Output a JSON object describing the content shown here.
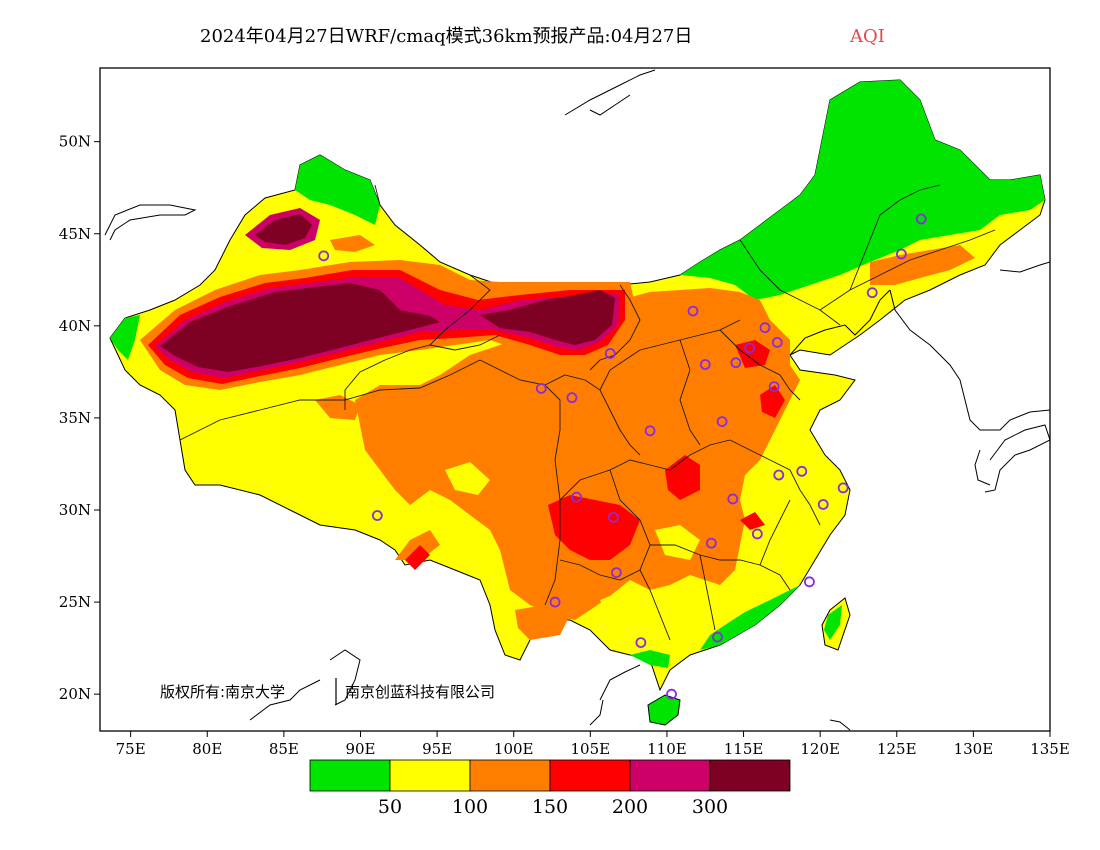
{
  "title": {
    "main": "2024年04月27日WRF/cmaq模式36km预报产品:04月27日",
    "variable": "AQI",
    "variable_color": "#e8444a"
  },
  "map": {
    "lon_range": [
      73,
      135
    ],
    "lat_range": [
      18,
      54
    ],
    "x_ticks": [
      "75E",
      "80E",
      "85E",
      "90E",
      "95E",
      "100E",
      "105E",
      "110E",
      "115E",
      "120E",
      "125E",
      "130E",
      "135E"
    ],
    "y_ticks": [
      "50N",
      "45N",
      "40N",
      "35N",
      "30N",
      "25N",
      "20N"
    ],
    "copyright": "版权所有:南京大学",
    "copyright2": "南京创蓝科技有限公司"
  },
  "legend": {
    "levels": [
      "50",
      "100",
      "150",
      "200",
      "300"
    ],
    "colors": [
      "#00e400",
      "#ffff00",
      "#ff7e00",
      "#ff0000",
      "#cc0066",
      "#7e0023"
    ],
    "categories": [
      "<50",
      "50-100",
      "100-150",
      "150-200",
      "200-300",
      ">300"
    ]
  },
  "stations": [
    {
      "lon": 87.6,
      "lat": 43.8
    },
    {
      "lon": 91.1,
      "lat": 29.7
    },
    {
      "lon": 101.8,
      "lat": 36.6
    },
    {
      "lon": 103.8,
      "lat": 36.1
    },
    {
      "lon": 106.3,
      "lat": 38.5
    },
    {
      "lon": 111.7,
      "lat": 40.8
    },
    {
      "lon": 112.5,
      "lat": 37.9
    },
    {
      "lon": 114.5,
      "lat": 38.0
    },
    {
      "lon": 115.4,
      "lat": 38.8
    },
    {
      "lon": 116.4,
      "lat": 39.9
    },
    {
      "lon": 117.2,
      "lat": 39.1
    },
    {
      "lon": 117.0,
      "lat": 36.7
    },
    {
      "lon": 113.6,
      "lat": 34.8
    },
    {
      "lon": 108.9,
      "lat": 34.3
    },
    {
      "lon": 104.1,
      "lat": 30.7
    },
    {
      "lon": 106.5,
      "lat": 29.6
    },
    {
      "lon": 106.7,
      "lat": 26.6
    },
    {
      "lon": 102.7,
      "lat": 25.0
    },
    {
      "lon": 108.3,
      "lat": 22.8
    },
    {
      "lon": 113.3,
      "lat": 23.1
    },
    {
      "lon": 110.3,
      "lat": 20.0
    },
    {
      "lon": 112.9,
      "lat": 28.2
    },
    {
      "lon": 114.3,
      "lat": 30.6
    },
    {
      "lon": 115.9,
      "lat": 28.7
    },
    {
      "lon": 117.3,
      "lat": 31.9
    },
    {
      "lon": 118.8,
      "lat": 32.1
    },
    {
      "lon": 120.2,
      "lat": 30.3
    },
    {
      "lon": 121.5,
      "lat": 31.2
    },
    {
      "lon": 119.3,
      "lat": 26.1
    },
    {
      "lon": 123.4,
      "lat": 41.8
    },
    {
      "lon": 125.3,
      "lat": 43.9
    },
    {
      "lon": 126.6,
      "lat": 45.8
    }
  ]
}
